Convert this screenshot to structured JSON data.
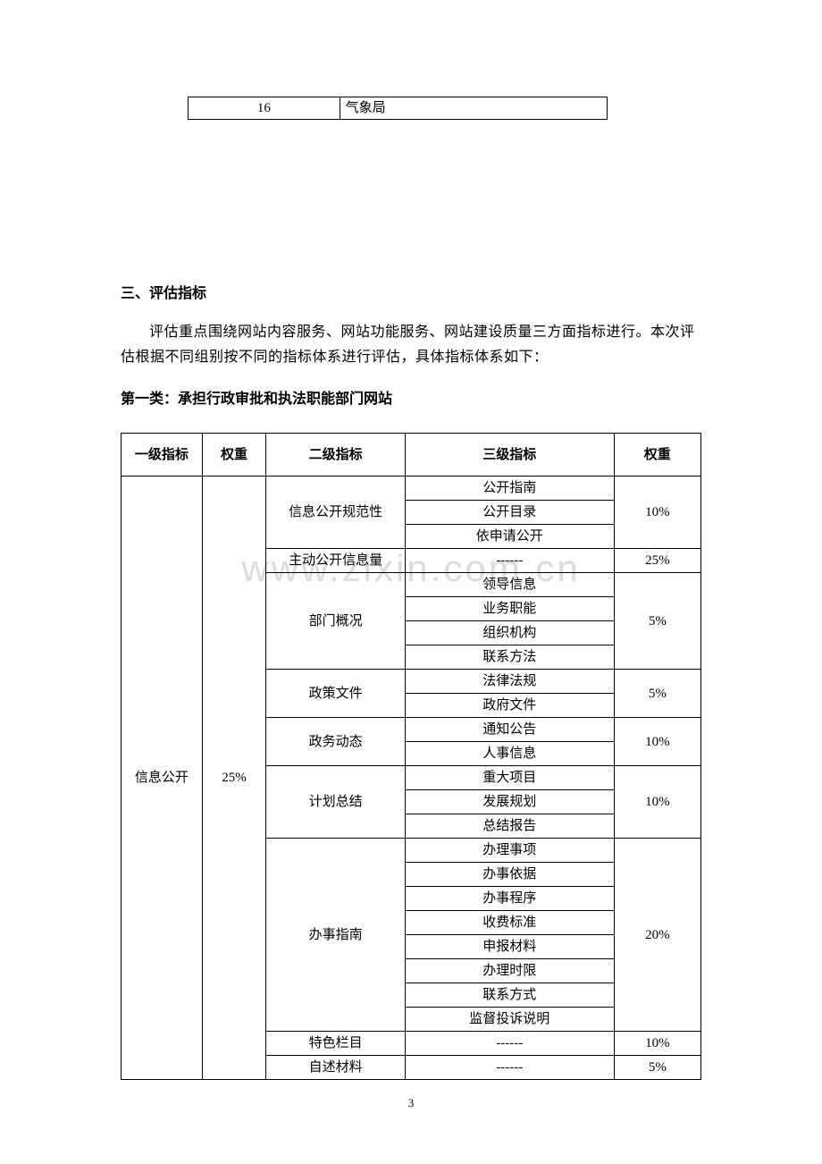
{
  "watermark": "www.zixin.com.cn",
  "page_number": "3",
  "top_table": {
    "col1": "16",
    "col2": "气象局"
  },
  "section_heading": "三、评估指标",
  "paragraph": "评估重点围绕网站内容服务、网站功能服务、网站建设质量三方面指标进行。本次评估根据不同组别按不同的指标体系进行评估，具体指标体系如下：",
  "subheading": "第一类：承担行政审批和执法职能部门网站",
  "headers": {
    "h1": "一级指标",
    "h2": "权重",
    "h3": "二级指标",
    "h4": "三级指标",
    "h5": "权重"
  },
  "lvl1": {
    "name": "信息公开",
    "weight": "25%"
  },
  "groups": [
    {
      "name": "信息公开规范性",
      "weight": "10%",
      "items": [
        "公开指南",
        "公开目录",
        "依申请公开"
      ]
    },
    {
      "name": "主动公开信息量",
      "weight": "25%",
      "items": [
        "------"
      ]
    },
    {
      "name": "部门概况",
      "weight": "5%",
      "items": [
        "领导信息",
        "业务职能",
        "组织机构",
        "联系方法"
      ]
    },
    {
      "name": "政策文件",
      "weight": "5%",
      "items": [
        "法律法规",
        "政府文件"
      ]
    },
    {
      "name": "政务动态",
      "weight": "10%",
      "items": [
        "通知公告",
        "人事信息"
      ]
    },
    {
      "name": "计划总结",
      "weight": "10%",
      "items": [
        "重大项目",
        "发展规划",
        "总结报告"
      ]
    },
    {
      "name": "办事指南",
      "weight": "20%",
      "items": [
        "办理事项",
        "办事依据",
        "办事程序",
        "收费标准",
        "申报材料",
        "办理时限",
        "联系方式",
        "监督投诉说明"
      ]
    },
    {
      "name": "特色栏目",
      "weight": "10%",
      "items": [
        "------"
      ]
    },
    {
      "name": "自述材料",
      "weight": "5%",
      "items": [
        "------"
      ]
    }
  ]
}
